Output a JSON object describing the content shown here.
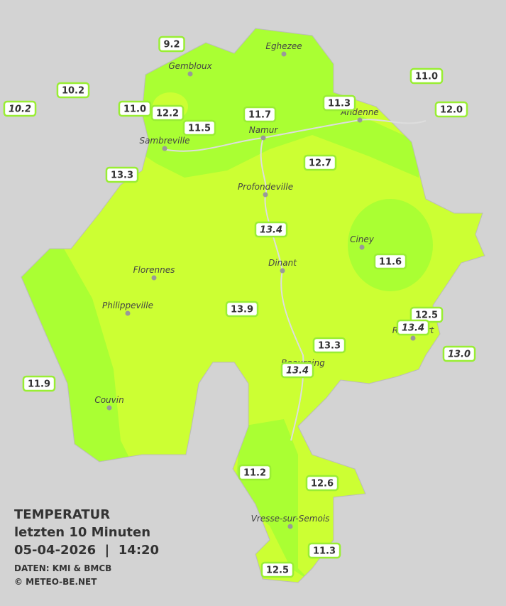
{
  "legend": {
    "title": "TEMPERATUR",
    "subtitle": "letzten 10 Minuten",
    "datetime": "05-04-2026  |  14:20",
    "source": "DATEN: KMI & BMCB",
    "copyright": "© METEO-BE.NET"
  },
  "towns": [
    "Eghezee",
    "Gembloux",
    "Andenne",
    "Namur",
    "Sambreville",
    "Profondeville",
    "Ciney",
    "Dinant",
    "Florennes",
    "Philippeville",
    "Couvin",
    "Vresse-sur-Semois",
    "Beauraing",
    "Rochefort"
  ],
  "stations": [
    {
      "reading": "9.2",
      "italic": false
    },
    {
      "reading": "10.2",
      "italic": false
    },
    {
      "reading": "10.2",
      "italic": true
    },
    {
      "reading": "11.0",
      "italic": false
    },
    {
      "reading": "12.2",
      "italic": false
    },
    {
      "reading": "11.5",
      "italic": false
    },
    {
      "reading": "11.7",
      "italic": false
    },
    {
      "reading": "11.3",
      "italic": false
    },
    {
      "reading": "11.0",
      "italic": false
    },
    {
      "reading": "12.0",
      "italic": false
    },
    {
      "reading": "13.3",
      "italic": false
    },
    {
      "reading": "12.7",
      "italic": false
    },
    {
      "reading": "13.4",
      "italic": true
    },
    {
      "reading": "11.6",
      "italic": false
    },
    {
      "reading": "13.9",
      "italic": false
    },
    {
      "reading": "12.5",
      "italic": false
    },
    {
      "reading": "13.4",
      "italic": true
    },
    {
      "reading": "13.3",
      "italic": false
    },
    {
      "reading": "13.0",
      "italic": true
    },
    {
      "reading": "13.4",
      "italic": true
    },
    {
      "reading": "11.9",
      "italic": false
    },
    {
      "reading": "11.2",
      "italic": false
    },
    {
      "reading": "12.6",
      "italic": false
    },
    {
      "reading": "11.3",
      "italic": false
    },
    {
      "reading": "12.5",
      "italic": false
    }
  ]
}
